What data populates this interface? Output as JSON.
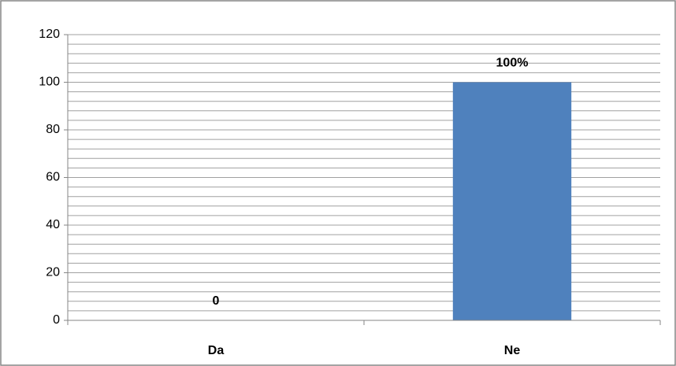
{
  "chart_data": {
    "type": "bar",
    "categories": [
      "Da",
      "Ne"
    ],
    "values": [
      0,
      100
    ],
    "value_labels": [
      "0",
      "100%"
    ],
    "color": "#4f81bd",
    "ylim": [
      0,
      120
    ],
    "yticks": [
      0,
      20,
      40,
      60,
      80,
      100,
      120
    ],
    "yminorticks": [
      4,
      8,
      12,
      16,
      24,
      28,
      32,
      36,
      44,
      48,
      52,
      56,
      64,
      68,
      72,
      76,
      84,
      88,
      92,
      96,
      104,
      108,
      112,
      116
    ],
    "grid": true
  }
}
